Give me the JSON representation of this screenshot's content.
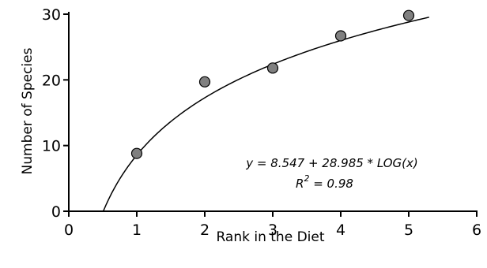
{
  "chart_data": {
    "type": "scatter",
    "xlabel": "Rank in the Diet",
    "ylabel": "Number of Species",
    "xlim": [
      0,
      6
    ],
    "ylim": [
      0,
      30
    ],
    "x_ticks": [
      "0",
      "1",
      "2",
      "3",
      "4",
      "5",
      "6"
    ],
    "y_ticks": [
      "0",
      "10",
      "20",
      "30"
    ],
    "grid": false,
    "colors": {
      "marker_fill": "#808080",
      "marker_stroke": "#000000",
      "line": "#000000"
    },
    "points": [
      {
        "x": 1,
        "y": 8.8
      },
      {
        "x": 2,
        "y": 19.7
      },
      {
        "x": 3,
        "y": 21.8
      },
      {
        "x": 4,
        "y": 26.7
      },
      {
        "x": 5,
        "y": 29.8
      }
    ],
    "fit": {
      "type": "log10",
      "intercept": 8.547,
      "slope": 28.985,
      "x_range": [
        0.51,
        5.3
      ]
    },
    "annotations": {
      "equation": "y = 8.547 + 28.985 * LOG(x)",
      "r2_symbol": "R",
      "r2_exponent": "2",
      "r2_value": " = 0.98"
    }
  }
}
